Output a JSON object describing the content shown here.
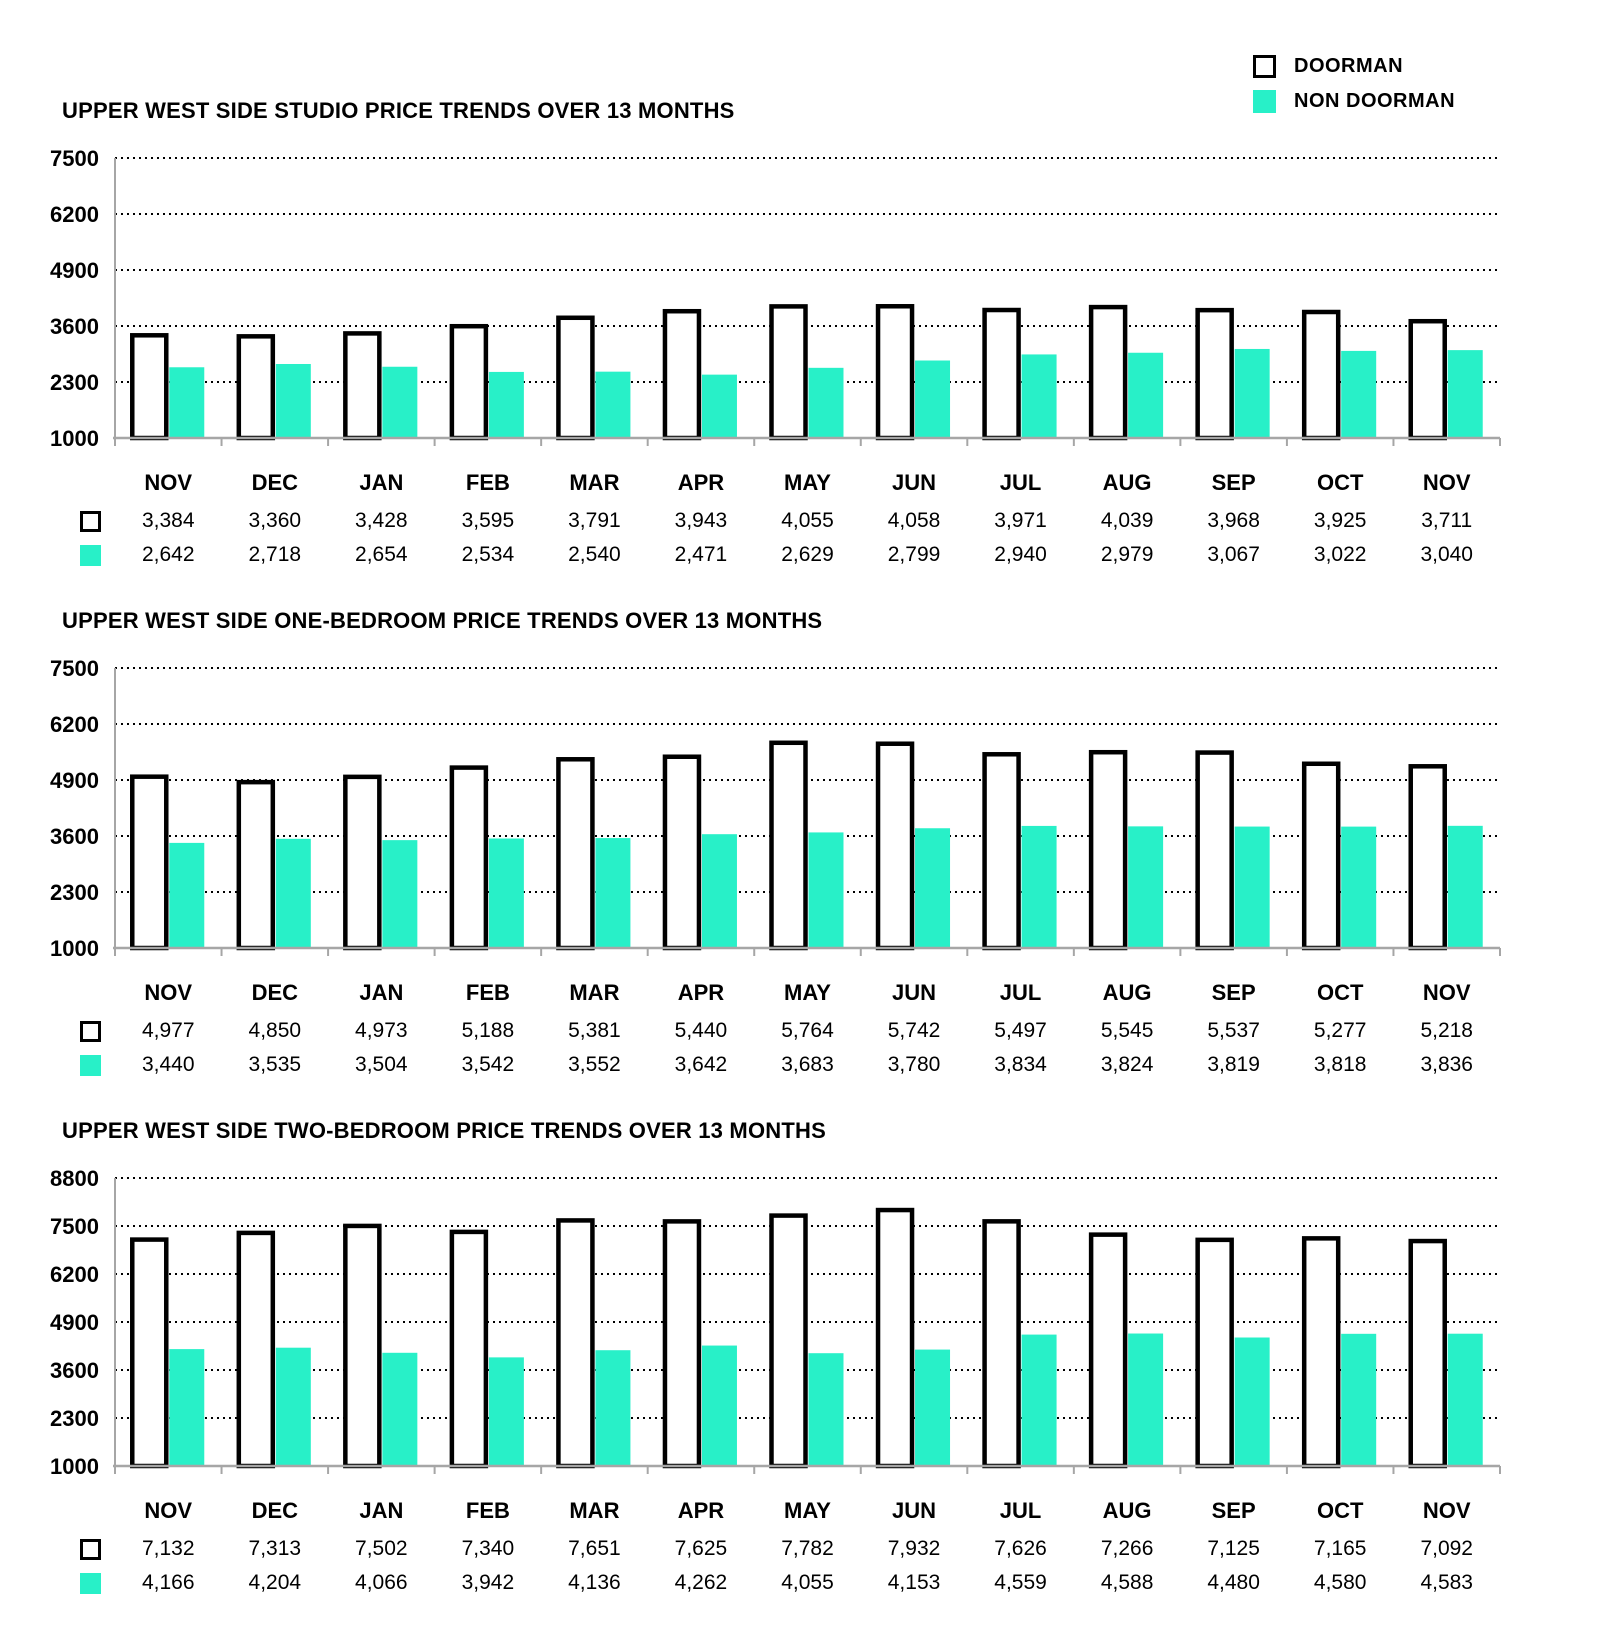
{
  "legend": {
    "items": [
      {
        "label": "DOORMAN",
        "color": "#ffffff",
        "border": "#000000"
      },
      {
        "label": "NON DOORMAN",
        "color": "#28F0C8",
        "border": "#28F0C8"
      }
    ]
  },
  "colors": {
    "non_doorman_fill": "#28F0C8",
    "doorman_fill": "#ffffff",
    "doorman_stroke": "#000000",
    "gridline": "#000000",
    "axis_line": "#a6a6a6"
  },
  "chart_data": [
    {
      "type": "bar",
      "title": "UPPER WEST SIDE STUDIO PRICE TRENDS OVER 13 MONTHS",
      "categories": [
        "NOV",
        "DEC",
        "JAN",
        "FEB",
        "MAR",
        "APR",
        "MAY",
        "JUN",
        "JUL",
        "AUG",
        "SEP",
        "OCT",
        "NOV"
      ],
      "series": [
        {
          "name": "DOORMAN",
          "values": [
            3384,
            3360,
            3428,
            3595,
            3791,
            3943,
            4055,
            4058,
            3971,
            4039,
            3968,
            3925,
            3711
          ]
        },
        {
          "name": "NON DOORMAN",
          "values": [
            2642,
            2718,
            2654,
            2534,
            2540,
            2471,
            2629,
            2799,
            2940,
            2979,
            3067,
            3022,
            3040
          ]
        }
      ],
      "ylim": [
        1000,
        7500
      ],
      "yticks": [
        7500,
        6200,
        4900,
        3600,
        2300,
        1000
      ],
      "grid": "dotted-horizontal",
      "legend_position": "top-right"
    },
    {
      "type": "bar",
      "title": "UPPER WEST SIDE ONE-BEDROOM PRICE TRENDS OVER 13 MONTHS",
      "categories": [
        "NOV",
        "DEC",
        "JAN",
        "FEB",
        "MAR",
        "APR",
        "MAY",
        "JUN",
        "JUL",
        "AUG",
        "SEP",
        "OCT",
        "NOV"
      ],
      "series": [
        {
          "name": "DOORMAN",
          "values": [
            4977,
            4850,
            4973,
            5188,
            5381,
            5440,
            5764,
            5742,
            5497,
            5545,
            5537,
            5277,
            5218
          ]
        },
        {
          "name": "NON DOORMAN",
          "values": [
            3440,
            3535,
            3504,
            3542,
            3552,
            3642,
            3683,
            3780,
            3834,
            3824,
            3819,
            3818,
            3836
          ]
        }
      ],
      "ylim": [
        1000,
        7500
      ],
      "yticks": [
        7500,
        6200,
        4900,
        3600,
        2300,
        1000
      ],
      "grid": "dotted-horizontal",
      "legend_position": "top-right"
    },
    {
      "type": "bar",
      "title": "UPPER WEST SIDE TWO-BEDROOM PRICE TRENDS OVER 13 MONTHS",
      "categories": [
        "NOV",
        "DEC",
        "JAN",
        "FEB",
        "MAR",
        "APR",
        "MAY",
        "JUN",
        "JUL",
        "AUG",
        "SEP",
        "OCT",
        "NOV"
      ],
      "series": [
        {
          "name": "DOORMAN",
          "values": [
            7132,
            7313,
            7502,
            7340,
            7651,
            7625,
            7782,
            7932,
            7626,
            7266,
            7125,
            7165,
            7092
          ]
        },
        {
          "name": "NON DOORMAN",
          "values": [
            4166,
            4204,
            4066,
            3942,
            4136,
            4262,
            4055,
            4153,
            4559,
            4588,
            4480,
            4580,
            4583
          ]
        }
      ],
      "ylim": [
        1000,
        8800
      ],
      "yticks": [
        8800,
        7500,
        6200,
        4900,
        3600,
        2300,
        1000
      ],
      "grid": "dotted-horizontal",
      "legend_position": "top-right"
    }
  ]
}
